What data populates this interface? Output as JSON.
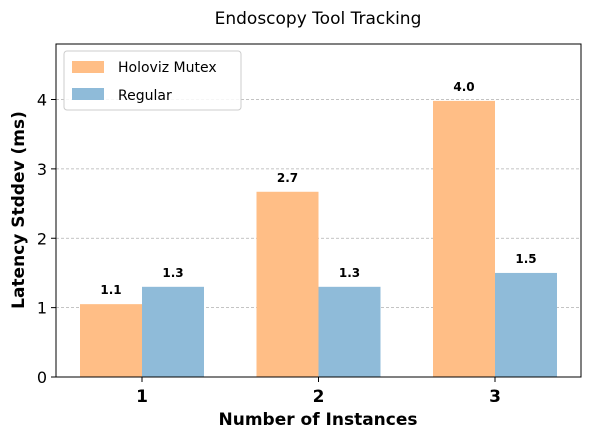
{
  "chart_data": {
    "type": "bar",
    "title": "Endoscopy Tool Tracking",
    "xlabel": "Number of Instances",
    "ylabel": "Latency Stddev (ms)",
    "categories": [
      "1",
      "2",
      "3"
    ],
    "series": [
      {
        "name": "Holoviz Mutex",
        "values": [
          1.05,
          2.67,
          3.98
        ],
        "labels": [
          "1.1",
          "2.7",
          "4.0"
        ],
        "color": "#ffbe86"
      },
      {
        "name": "Regular",
        "values": [
          1.3,
          1.3,
          1.5
        ],
        "labels": [
          "1.3",
          "1.3",
          "1.5"
        ],
        "color": "#8fbbd9"
      }
    ],
    "ylim": [
      0,
      4.8
    ],
    "yticks": [
      "0",
      "1",
      "2",
      "3",
      "4"
    ],
    "grid": "y-dashed",
    "legend_position": "top-left"
  }
}
